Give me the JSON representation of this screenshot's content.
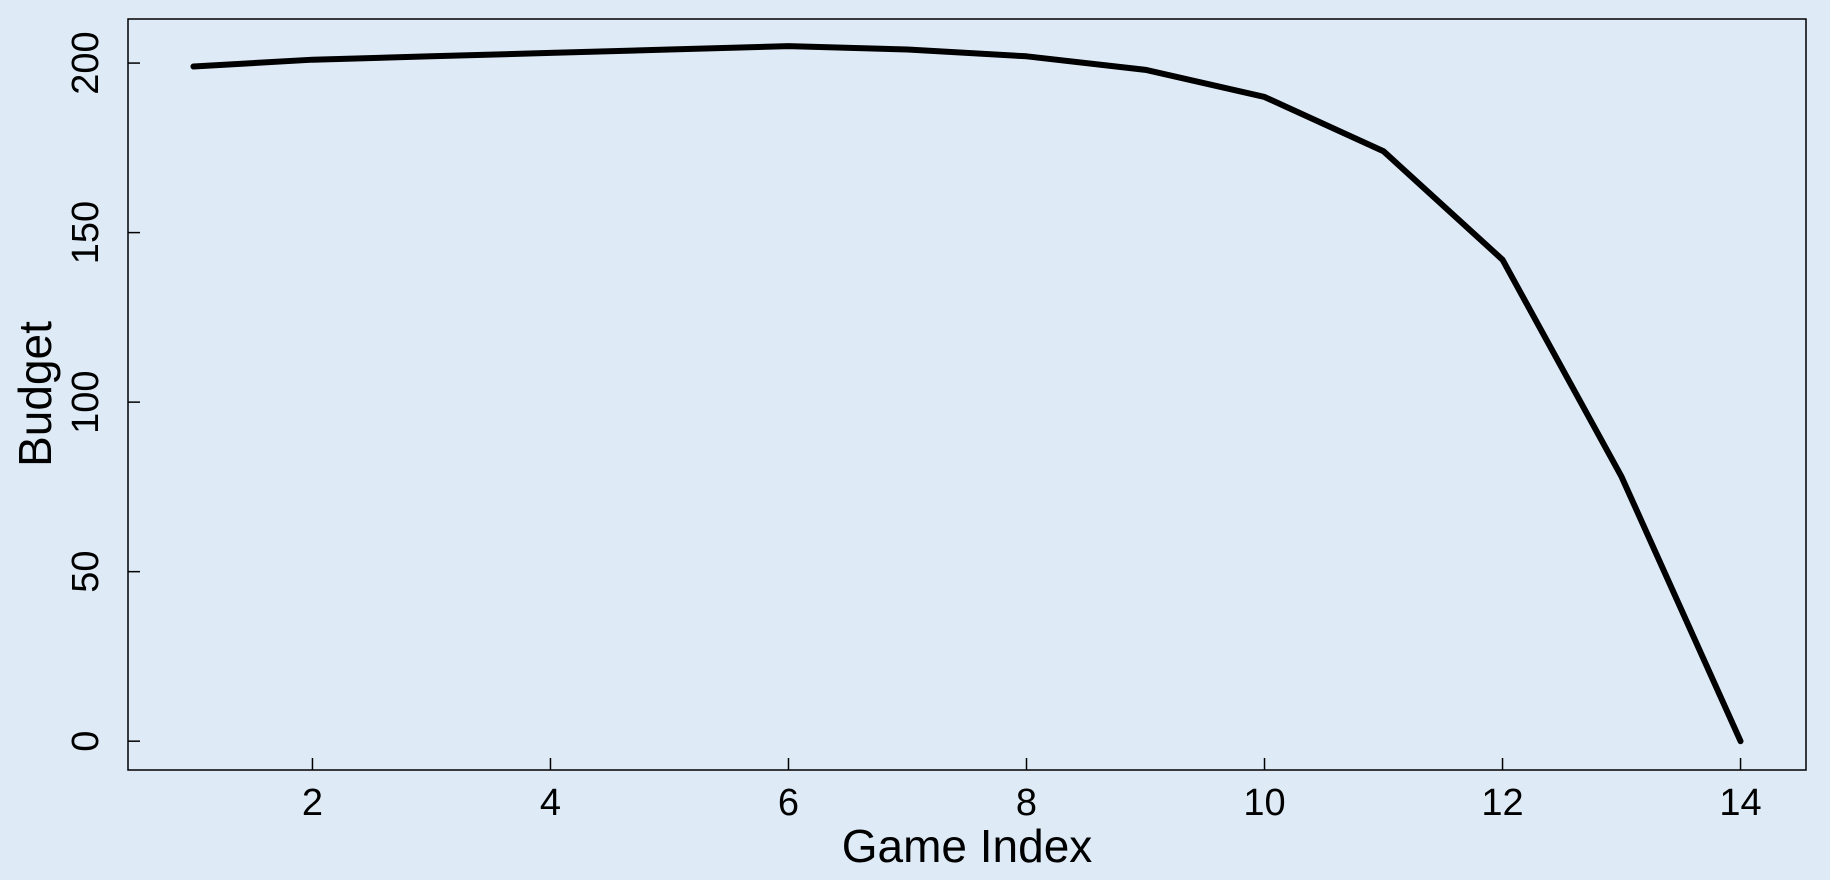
{
  "colors": {
    "background": "#deebf7",
    "line": "#000000"
  },
  "chart_data": {
    "type": "line",
    "title": "",
    "xlabel": "Game Index",
    "ylabel": "Budget",
    "xlim": [
      0.45,
      14.55
    ],
    "ylim": [
      -8.5,
      213
    ],
    "x_ticks": [
      2,
      4,
      6,
      8,
      10,
      12,
      14
    ],
    "y_ticks": [
      0,
      50,
      100,
      150,
      200
    ],
    "grid": false,
    "legend": "none",
    "series": [
      {
        "x": [
          1,
          2,
          3,
          4,
          5,
          6,
          7,
          8,
          9,
          10,
          11,
          12,
          13,
          14
        ],
        "y": [
          199,
          201,
          202,
          203,
          204,
          205,
          204,
          202,
          198,
          190,
          174,
          142,
          78,
          0
        ]
      }
    ]
  }
}
